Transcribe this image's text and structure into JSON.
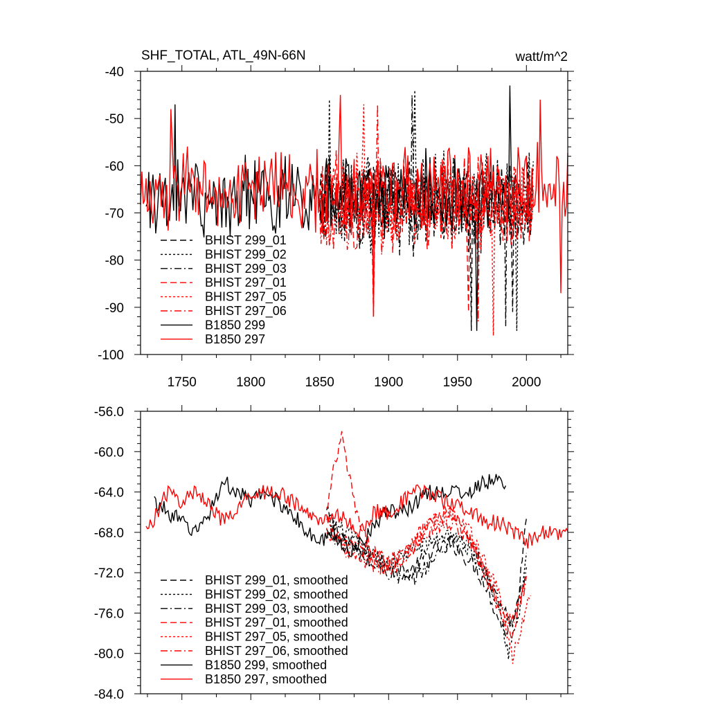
{
  "chart_data": [
    {
      "type": "line",
      "title": "SHF_TOTAL, ATL_49N-66N",
      "units_label": "watt/m^2",
      "xlim": [
        1720,
        2030
      ],
      "ylim": [
        -100,
        -40
      ],
      "x_ticks": [
        1750,
        1800,
        1850,
        1900,
        1950,
        2000
      ],
      "y_ticks": [
        -40,
        -50,
        -60,
        -70,
        -80,
        -90,
        -100
      ],
      "y_tick_labels": [
        "-40",
        "-50",
        "-60",
        "-70",
        "-80",
        "-90",
        "-100"
      ],
      "legend_position": "lower-left",
      "series": [
        {
          "name": "BHIST 299_01",
          "color": "#000000",
          "dash": "dash",
          "x_start": 1850,
          "x_end": 2005,
          "mean": -68,
          "amp": 9,
          "extremes": [
            [
              1960,
              -95
            ],
            [
              1990,
              -91
            ]
          ]
        },
        {
          "name": "BHIST 299_02",
          "color": "#000000",
          "dash": "dot",
          "x_start": 1850,
          "x_end": 2005,
          "mean": -68,
          "amp": 9,
          "extremes": [
            [
              1857,
              -46
            ],
            [
              1919,
              -44
            ],
            [
              1993,
              -95
            ]
          ]
        },
        {
          "name": "BHIST 299_03",
          "color": "#000000",
          "dash": "dashdot",
          "x_start": 1850,
          "x_end": 2005,
          "mean": -68,
          "amp": 9,
          "extremes": [
            [
              1917,
              -45
            ],
            [
              1985,
              -94
            ]
          ]
        },
        {
          "name": "BHIST 297_01",
          "color": "#ff0000",
          "dash": "dash",
          "x_start": 1850,
          "x_end": 2005,
          "mean": -68,
          "amp": 9,
          "extremes": [
            [
              1889,
              -92
            ],
            [
              1958,
              -91
            ]
          ]
        },
        {
          "name": "BHIST 297_05",
          "color": "#ff0000",
          "dash": "dot",
          "x_start": 1850,
          "x_end": 2005,
          "mean": -68,
          "amp": 9,
          "extremes": [
            [
              1976,
              -96
            ],
            [
              1882,
              -47
            ]
          ]
        },
        {
          "name": "BHIST 297_06",
          "color": "#ff0000",
          "dash": "dashdot",
          "x_start": 1850,
          "x_end": 2005,
          "mean": -68,
          "amp": 9,
          "extremes": [
            [
              1892,
              -47
            ],
            [
              1965,
              -93
            ]
          ]
        },
        {
          "name": "B1850 299",
          "color": "#000000",
          "dash": "solid",
          "x_start": 1724,
          "x_end": 1992,
          "mean": -66,
          "amp": 8,
          "extremes": [
            [
              1745,
              -47
            ],
            [
              1988,
              -43
            ],
            [
              1964,
              -95
            ]
          ]
        },
        {
          "name": "B1850 297",
          "color": "#ff0000",
          "dash": "solid",
          "x_start": 1720,
          "x_end": 2030,
          "mean": -65,
          "amp": 8,
          "extremes": [
            [
              1742,
              -48
            ],
            [
              1865,
              -45
            ],
            [
              2010,
              -46
            ],
            [
              2025,
              -87
            ],
            [
              1889,
              -92
            ]
          ]
        }
      ]
    },
    {
      "type": "line",
      "xlim": [
        1720,
        2030
      ],
      "ylim": [
        -84,
        -56
      ],
      "x_ticks": [
        1750,
        1800,
        1850,
        1900,
        1950,
        2000
      ],
      "y_ticks": [
        -56,
        -60,
        -64,
        -68,
        -72,
        -76,
        -80,
        -84
      ],
      "y_tick_labels": [
        "-56.0",
        "-60.0",
        "-64.0",
        "-68.0",
        "-72.0",
        "-76.0",
        "-80.0",
        "-84.0"
      ],
      "legend_position": "lower-left",
      "series": [
        {
          "name": "BHIST 299_01, smoothed",
          "color": "#000000",
          "dash": "dash",
          "x": [
            1855,
            1870,
            1885,
            1900,
            1915,
            1930,
            1945,
            1960,
            1970,
            1978,
            1985,
            1993,
            2000
          ],
          "y": [
            -66,
            -69,
            -70,
            -71,
            -72,
            -70,
            -69,
            -71,
            -73,
            -76,
            -78,
            -76,
            -66
          ]
        },
        {
          "name": "BHIST 299_02, smoothed",
          "color": "#000000",
          "dash": "dot",
          "x": [
            1855,
            1870,
            1885,
            1900,
            1915,
            1930,
            1945,
            1960,
            1970,
            1980,
            1987,
            1995,
            2000
          ],
          "y": [
            -67,
            -68,
            -70,
            -71,
            -70,
            -69,
            -68,
            -70,
            -72,
            -75,
            -80,
            -76,
            -70
          ]
        },
        {
          "name": "BHIST 299_03, smoothed",
          "color": "#000000",
          "dash": "dashdot",
          "x": [
            1855,
            1870,
            1885,
            1900,
            1915,
            1930,
            1945,
            1960,
            1970,
            1980,
            1990,
            2000
          ],
          "y": [
            -68,
            -69,
            -71,
            -72,
            -73,
            -71,
            -69,
            -69,
            -72,
            -75,
            -77,
            -72
          ]
        },
        {
          "name": "BHIST 297_01, smoothed",
          "color": "#ff0000",
          "dash": "dash",
          "x": [
            1855,
            1860,
            1866,
            1872,
            1880,
            1890,
            1900,
            1915,
            1930,
            1945,
            1960,
            1970,
            1980,
            1990,
            2000
          ],
          "y": [
            -66,
            -62,
            -58.5,
            -63,
            -68,
            -70,
            -71,
            -69,
            -67,
            -66,
            -69,
            -72,
            -76,
            -78,
            -72
          ]
        },
        {
          "name": "BHIST 297_05, smoothed",
          "color": "#ff0000",
          "dash": "dot",
          "x": [
            1855,
            1870,
            1885,
            1900,
            1915,
            1930,
            1945,
            1960,
            1970,
            1980,
            1990,
            2003
          ],
          "y": [
            -68,
            -69,
            -70,
            -71,
            -70,
            -67,
            -66,
            -68,
            -71,
            -74,
            -80.5,
            -74
          ]
        },
        {
          "name": "BHIST 297_06, smoothed",
          "color": "#ff0000",
          "dash": "dashdot",
          "x": [
            1855,
            1870,
            1885,
            1900,
            1915,
            1930,
            1945,
            1960,
            1970,
            1980,
            1990,
            2000
          ],
          "y": [
            -67,
            -70,
            -71,
            -72,
            -70,
            -68,
            -67,
            -69,
            -72,
            -75,
            -77,
            -73
          ]
        },
        {
          "name": "B1850 299, smoothed",
          "color": "#000000",
          "dash": "solid",
          "x": [
            1730,
            1740,
            1750,
            1760,
            1770,
            1780,
            1790,
            1800,
            1810,
            1820,
            1830,
            1840,
            1850,
            1860,
            1870,
            1880,
            1890,
            1900,
            1910,
            1920,
            1930,
            1940,
            1950,
            1960,
            1970,
            1980,
            1985
          ],
          "y": [
            -65,
            -66,
            -67,
            -68,
            -66,
            -63,
            -64,
            -65,
            -64,
            -65,
            -66,
            -68,
            -69,
            -68,
            -70,
            -69,
            -67,
            -66,
            -66,
            -65,
            -64,
            -64,
            -64,
            -64,
            -63,
            -63,
            -63
          ]
        },
        {
          "name": "B1850 297, smoothed",
          "color": "#ff0000",
          "dash": "solid",
          "x": [
            1724,
            1732,
            1740,
            1750,
            1760,
            1770,
            1780,
            1790,
            1800,
            1810,
            1820,
            1830,
            1840,
            1850,
            1860,
            1870,
            1880,
            1890,
            1900,
            1910,
            1920,
            1930,
            1940,
            1950,
            1960,
            1970,
            1980,
            1990,
            2000,
            2010,
            2020,
            2030
          ],
          "y": [
            -68,
            -66,
            -64,
            -65,
            -64,
            -65,
            -67,
            -66,
            -64,
            -64,
            -64,
            -65,
            -66,
            -67,
            -66,
            -67,
            -68,
            -66,
            -66,
            -65,
            -64,
            -64,
            -65,
            -65,
            -66,
            -67,
            -67,
            -68,
            -69,
            -68,
            -68,
            -68
          ]
        }
      ]
    }
  ]
}
